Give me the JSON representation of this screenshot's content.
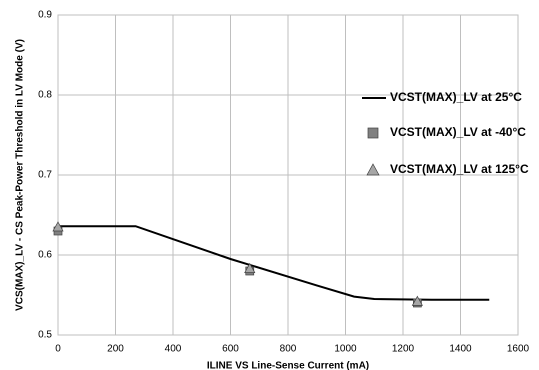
{
  "chart_data": {
    "type": "line",
    "xlabel": "ILINE VS Line-Sense Current (mA)",
    "ylabel": "VCS(MAX)_LV - CS Peak-Power Threshold in LV Mode (V)",
    "xlim": [
      0,
      1600
    ],
    "xticks": [
      0,
      200,
      400,
      600,
      800,
      1000,
      1200,
      1400,
      1600
    ],
    "ylim": [
      0.5,
      0.9
    ],
    "yticks": [
      0.5,
      0.6,
      0.7,
      0.8,
      0.9
    ],
    "grid": true,
    "series": [
      {
        "name": "VCST(MAX)_LV at 25°C",
        "marker": "line",
        "color": "#000000",
        "x": [
          0,
          270,
          600,
          900,
          1030,
          1100,
          1300,
          1500
        ],
        "values": [
          0.636,
          0.636,
          0.595,
          0.562,
          0.548,
          0.545,
          0.544,
          0.544
        ]
      },
      {
        "name": "VCST(MAX)_LV at -40°C",
        "marker": "square",
        "color": "#808080",
        "x": [
          0,
          667,
          1250
        ],
        "values": [
          0.63,
          0.58,
          0.54
        ]
      },
      {
        "name": "VCST(MAX)_LV at 125°C",
        "marker": "triangle",
        "color": "#a6a6a6",
        "x": [
          0,
          667,
          1250
        ],
        "values": [
          0.635,
          0.583,
          0.542
        ]
      }
    ]
  }
}
